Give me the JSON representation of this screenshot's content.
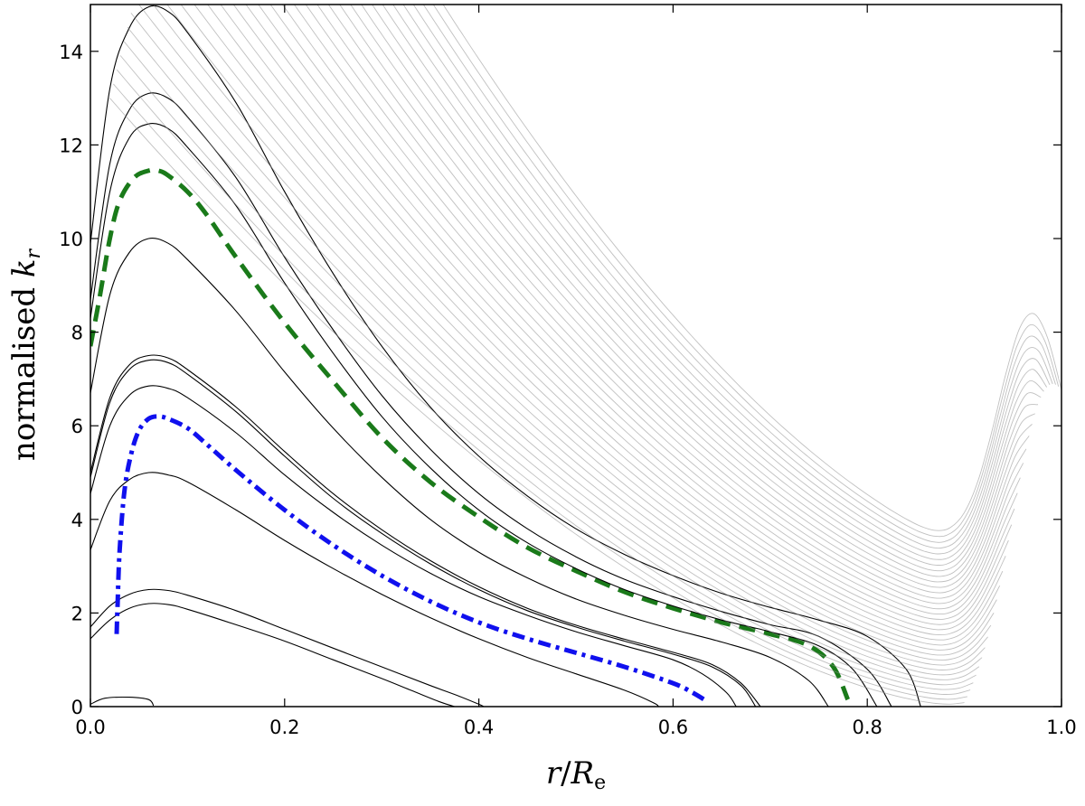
{
  "chart_data": {
    "type": "line",
    "title": "",
    "xlabel": {
      "prefix": "",
      "var": "r",
      "mid": "/",
      "var2": "R",
      "sub": "e"
    },
    "ylabel": {
      "prefix": "normalised ",
      "var": "k",
      "sub": "r"
    },
    "xlim": [
      0,
      1
    ],
    "ylim": [
      0,
      15
    ],
    "xticks": [
      0.0,
      0.2,
      0.4,
      0.6,
      0.8,
      1.0
    ],
    "xtick_labels": [
      "0.0",
      "0.2",
      "0.4",
      "0.6",
      "0.8",
      "1.0"
    ],
    "yticks": [
      0,
      2,
      4,
      6,
      8,
      10,
      12,
      14
    ],
    "ytick_labels": [
      "0",
      "2",
      "4",
      "6",
      "8",
      "10",
      "12",
      "14"
    ],
    "grid": false,
    "legend": "none",
    "colors": {
      "dashed": "#1a7a1a",
      "dashdot": "#1010ee",
      "black_curve": "#000000",
      "gray_curve": "#8c8c8c"
    },
    "series": [
      {
        "style": "black",
        "x": [
          0.0,
          0.015,
          0.04,
          0.06,
          0.065
        ],
        "y": [
          0.05,
          0.18,
          0.2,
          0.15,
          0.02
        ]
      },
      {
        "style": "black",
        "x": [
          0.0,
          0.02,
          0.04,
          0.06,
          0.08,
          0.1,
          0.15,
          0.2,
          0.25,
          0.3,
          0.33,
          0.36,
          0.375
        ],
        "y": [
          1.45,
          1.85,
          2.1,
          2.2,
          2.18,
          2.08,
          1.75,
          1.4,
          1.0,
          0.6,
          0.35,
          0.1,
          0.0
        ]
      },
      {
        "style": "black",
        "x": [
          0.0,
          0.02,
          0.04,
          0.06,
          0.08,
          0.1,
          0.15,
          0.2,
          0.25,
          0.3,
          0.35,
          0.38,
          0.4,
          0.405
        ],
        "y": [
          1.7,
          2.15,
          2.4,
          2.5,
          2.48,
          2.38,
          2.05,
          1.65,
          1.25,
          0.85,
          0.45,
          0.22,
          0.05,
          0.0
        ]
      },
      {
        "style": "black",
        "x": [
          0.0,
          0.02,
          0.04,
          0.06,
          0.08,
          0.1,
          0.15,
          0.2,
          0.25,
          0.3,
          0.35,
          0.4,
          0.45,
          0.5,
          0.55,
          0.58,
          0.585
        ],
        "y": [
          3.35,
          4.4,
          4.85,
          5.0,
          4.95,
          4.8,
          4.2,
          3.55,
          2.95,
          2.4,
          1.9,
          1.45,
          1.05,
          0.7,
          0.35,
          0.08,
          0.0
        ]
      },
      {
        "style": "black",
        "x": [
          0.0,
          0.02,
          0.04,
          0.06,
          0.08,
          0.1,
          0.15,
          0.2,
          0.25,
          0.3,
          0.35,
          0.4,
          0.45,
          0.5,
          0.55,
          0.6,
          0.63,
          0.655,
          0.665
        ],
        "y": [
          4.55,
          6.0,
          6.65,
          6.85,
          6.8,
          6.6,
          5.85,
          4.95,
          4.15,
          3.45,
          2.85,
          2.35,
          1.95,
          1.6,
          1.3,
          1.0,
          0.7,
          0.3,
          0.0
        ]
      },
      {
        "style": "black",
        "x": [
          0.0,
          0.02,
          0.04,
          0.06,
          0.08,
          0.1,
          0.15,
          0.2,
          0.25,
          0.3,
          0.35,
          0.4,
          0.45,
          0.5,
          0.55,
          0.6,
          0.64,
          0.67,
          0.685
        ],
        "y": [
          4.9,
          6.5,
          7.2,
          7.4,
          7.35,
          7.1,
          6.3,
          5.35,
          4.45,
          3.7,
          3.05,
          2.5,
          2.05,
          1.7,
          1.4,
          1.12,
          0.85,
          0.45,
          0.0
        ]
      },
      {
        "style": "black",
        "x": [
          0.0,
          0.02,
          0.04,
          0.06,
          0.08,
          0.1,
          0.15,
          0.2,
          0.25,
          0.3,
          0.35,
          0.4,
          0.45,
          0.5,
          0.55,
          0.6,
          0.64,
          0.67,
          0.69
        ],
        "y": [
          5.0,
          6.6,
          7.3,
          7.5,
          7.45,
          7.2,
          6.4,
          5.45,
          4.55,
          3.78,
          3.12,
          2.56,
          2.1,
          1.74,
          1.44,
          1.16,
          0.9,
          0.5,
          0.0
        ]
      },
      {
        "style": "black",
        "x": [
          0.0,
          0.02,
          0.04,
          0.06,
          0.08,
          0.1,
          0.15,
          0.2,
          0.25,
          0.3,
          0.35,
          0.4,
          0.45,
          0.5,
          0.55,
          0.6,
          0.65,
          0.7,
          0.74,
          0.76
        ],
        "y": [
          6.7,
          8.8,
          9.7,
          10.0,
          9.9,
          9.55,
          8.45,
          7.15,
          5.95,
          4.9,
          4.0,
          3.3,
          2.75,
          2.3,
          1.95,
          1.65,
          1.38,
          1.05,
          0.55,
          0.0
        ]
      },
      {
        "style": "dashed",
        "x": [
          0.0,
          0.01,
          0.02,
          0.03,
          0.045,
          0.06,
          0.07,
          0.08,
          0.1,
          0.12,
          0.15,
          0.2,
          0.25,
          0.3,
          0.35,
          0.4,
          0.45,
          0.5,
          0.55,
          0.6,
          0.65,
          0.7,
          0.74,
          0.765,
          0.78
        ],
        "y": [
          7.7,
          8.8,
          10.0,
          10.8,
          11.3,
          11.45,
          11.45,
          11.35,
          11.0,
          10.5,
          9.6,
          8.2,
          6.95,
          5.75,
          4.8,
          4.05,
          3.4,
          2.9,
          2.45,
          2.1,
          1.8,
          1.55,
          1.3,
          0.85,
          0.15
        ]
      },
      {
        "style": "black",
        "x": [
          0.0,
          0.02,
          0.04,
          0.06,
          0.08,
          0.1,
          0.15,
          0.2,
          0.25,
          0.3,
          0.35,
          0.4,
          0.45,
          0.5,
          0.55,
          0.6,
          0.65,
          0.7,
          0.75,
          0.785,
          0.81
        ],
        "y": [
          8.3,
          11.0,
          12.15,
          12.45,
          12.35,
          11.95,
          10.7,
          9.05,
          7.55,
          6.2,
          5.1,
          4.2,
          3.5,
          2.95,
          2.5,
          2.15,
          1.85,
          1.6,
          1.3,
          0.8,
          0.0
        ]
      },
      {
        "style": "black",
        "x": [
          0.0,
          0.02,
          0.04,
          0.06,
          0.08,
          0.1,
          0.15,
          0.2,
          0.25,
          0.3,
          0.35,
          0.4,
          0.45,
          0.5,
          0.55,
          0.6,
          0.65,
          0.7,
          0.75,
          0.8,
          0.825
        ],
        "y": [
          8.7,
          11.6,
          12.75,
          13.1,
          13.0,
          12.6,
          11.3,
          9.6,
          8.05,
          6.65,
          5.5,
          4.55,
          3.8,
          3.2,
          2.72,
          2.35,
          2.03,
          1.75,
          1.5,
          0.8,
          0.0
        ]
      },
      {
        "style": "black",
        "x": [
          0.0,
          0.02,
          0.04,
          0.06,
          0.08,
          0.1,
          0.15,
          0.2,
          0.25,
          0.3,
          0.35,
          0.4,
          0.45,
          0.5,
          0.55,
          0.6,
          0.65,
          0.7,
          0.75,
          0.8,
          0.84,
          0.855
        ],
        "y": [
          9.9,
          13.2,
          14.5,
          14.95,
          14.85,
          14.4,
          12.9,
          11.0,
          9.25,
          7.7,
          6.4,
          5.35,
          4.5,
          3.8,
          3.25,
          2.8,
          2.42,
          2.12,
          1.85,
          1.5,
          0.8,
          0.0
        ]
      },
      {
        "style": "dashdot",
        "x": [
          0.027,
          0.028,
          0.03,
          0.035,
          0.042,
          0.05,
          0.06,
          0.07,
          0.08,
          0.1,
          0.12,
          0.15,
          0.2,
          0.25,
          0.3,
          0.35,
          0.4,
          0.45,
          0.5,
          0.55,
          0.6,
          0.62,
          0.632
        ],
        "y": [
          1.55,
          2.2,
          3.3,
          4.6,
          5.4,
          5.9,
          6.15,
          6.2,
          6.15,
          5.95,
          5.6,
          5.05,
          4.2,
          3.45,
          2.8,
          2.25,
          1.8,
          1.45,
          1.15,
          0.85,
          0.5,
          0.3,
          0.15
        ]
      }
    ]
  }
}
